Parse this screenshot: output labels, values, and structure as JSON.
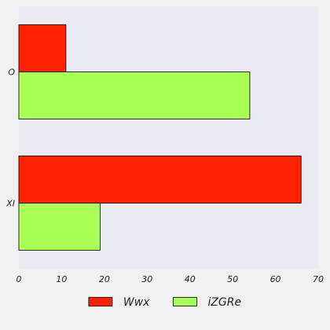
{
  "chart_data": {
    "type": "bar",
    "orientation": "horizontal",
    "categories": [
      "O",
      "XI"
    ],
    "series": [
      {
        "name": "Wwx",
        "values": [
          11,
          66
        ],
        "color": "#ff2200"
      },
      {
        "name": "iZGRe",
        "values": [
          54,
          19
        ],
        "color": "#aaff55"
      }
    ],
    "xlim": [
      0,
      70
    ],
    "xticks": [
      0,
      10,
      20,
      30,
      40,
      50,
      60,
      70
    ],
    "title": "",
    "xlabel": "",
    "ylabel": "",
    "grid": false,
    "legend_position": "bottom-center",
    "plot_background": "#eaeaf2",
    "page_background": "#f0f0f0"
  }
}
